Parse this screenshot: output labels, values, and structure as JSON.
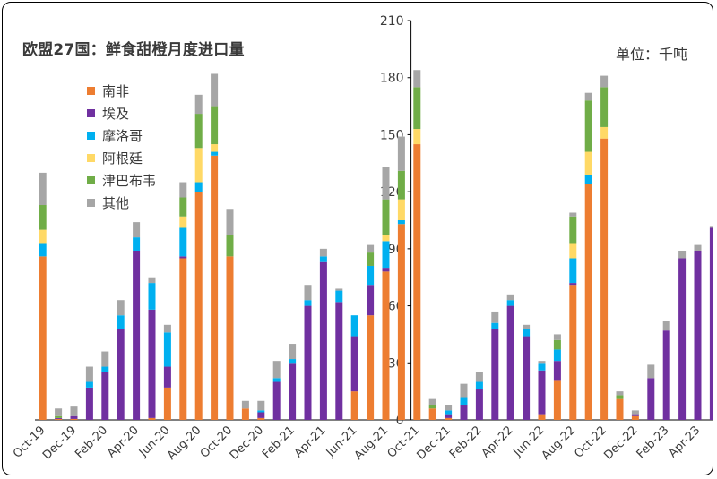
{
  "title": "欧盟27国：鲜食甜橙月度进口量",
  "unit": "单位：千吨",
  "chart_data": {
    "type": "bar",
    "stacked": true,
    "ylim": [
      0,
      210
    ],
    "yticks": [
      0,
      30,
      60,
      90,
      120,
      150,
      180,
      210
    ],
    "y_axis_position": "middle (at Oct-21)",
    "grid": false,
    "legend_position": "top-left",
    "categories": [
      "Oct-19",
      "Nov-19",
      "Dec-19",
      "Jan-20",
      "Feb-20",
      "Mar-20",
      "Apr-20",
      "May-20",
      "Jun-20",
      "Jul-20",
      "Aug-20",
      "Sep-20",
      "Oct-20",
      "Nov-20",
      "Dec-20",
      "Jan-21",
      "Feb-21",
      "Mar-21",
      "Apr-21",
      "May-21",
      "Jun-21",
      "Jul-21",
      "Aug-21",
      "Sep-21",
      "Oct-21",
      "Nov-21",
      "Dec-21",
      "Jan-22",
      "Feb-22",
      "Mar-22",
      "Apr-22",
      "May-22",
      "Jun-22",
      "Jul-22",
      "Aug-22",
      "Sep-22",
      "Oct-22",
      "Nov-22",
      "Dec-22",
      "Jan-23",
      "Feb-23",
      "Mar-23",
      "Apr-23",
      "May-23"
    ],
    "x_tick_labels": [
      "Oct-19",
      "Dec-19",
      "Feb-20",
      "Apr-20",
      "Jun-20",
      "Aug-20",
      "Oct-20",
      "Dec-20",
      "Feb-21",
      "Apr-21",
      "Jun-21",
      "Aug-21",
      "Oct-21",
      "Dec-21",
      "Feb-22",
      "Apr-22",
      "Jun-22",
      "Aug-22",
      "Oct-22",
      "Dec-22",
      "Feb-23",
      "Apr-23"
    ],
    "series": [
      {
        "name": "南非",
        "color": "#ED7D31",
        "values": [
          86,
          0.5,
          0.5,
          0,
          0,
          0,
          0,
          1,
          17,
          85,
          120,
          139,
          86,
          6,
          1,
          0,
          0,
          0,
          0,
          0,
          15,
          55,
          78,
          103,
          145,
          6,
          1,
          0,
          0,
          0,
          0,
          0,
          3,
          21,
          71,
          124,
          148,
          11,
          2,
          0,
          0,
          0,
          0,
          0
        ]
      },
      {
        "name": "埃及",
        "color": "#7030A0",
        "values": [
          0,
          0.5,
          1.5,
          17,
          25,
          48,
          89,
          57,
          11,
          1,
          0,
          0,
          0,
          0,
          3,
          20,
          30,
          60,
          83,
          62,
          29,
          16,
          2,
          0,
          0,
          0,
          2,
          8,
          16,
          48,
          60,
          44,
          23,
          10,
          1,
          0,
          0,
          0,
          1,
          22,
          47,
          85,
          89,
          101
        ]
      },
      {
        "name": "摩洛哥",
        "color": "#00B0F0",
        "values": [
          7,
          0,
          0,
          3,
          3,
          7,
          7,
          14,
          18,
          15,
          5,
          2,
          0,
          0,
          1,
          2,
          2,
          3,
          3,
          6,
          11,
          10,
          14,
          2,
          0,
          0,
          2,
          4,
          4,
          3,
          3,
          4,
          4,
          6,
          13,
          5,
          0,
          0,
          0,
          0,
          0,
          0,
          0,
          0
        ]
      },
      {
        "name": "阿根廷",
        "color": "#FFD966",
        "values": [
          7,
          0,
          0,
          0,
          0,
          0,
          0,
          0,
          0,
          6,
          18,
          4,
          0,
          0,
          0,
          0,
          0,
          0,
          0,
          0,
          0,
          0,
          3,
          11,
          8,
          0,
          0,
          0,
          0,
          0,
          0,
          0,
          0,
          0,
          8,
          12,
          6,
          0,
          0,
          0,
          0,
          0,
          0,
          0
        ]
      },
      {
        "name": "津巴布韦",
        "color": "#70AD47",
        "values": [
          13,
          1,
          0,
          0,
          0,
          0,
          0,
          0,
          0,
          10,
          18,
          20,
          11,
          0,
          0,
          0,
          0,
          0,
          0,
          0,
          0,
          7,
          19,
          15,
          22,
          2,
          0,
          0,
          0,
          0,
          0,
          0,
          0,
          5,
          14,
          27,
          21,
          2,
          0,
          0,
          0,
          0,
          0,
          0
        ]
      },
      {
        "name": "其他",
        "color": "#A6A6A6",
        "values": [
          17,
          4,
          5,
          8,
          8,
          8,
          8,
          3,
          4,
          8,
          10,
          17,
          14,
          4,
          5,
          9,
          8,
          8,
          4,
          1,
          0,
          4,
          17,
          18,
          9,
          3,
          3,
          7,
          5,
          6,
          3,
          2,
          1,
          3,
          2,
          4,
          6,
          2,
          2,
          7,
          5,
          4,
          3,
          1
        ]
      }
    ]
  }
}
